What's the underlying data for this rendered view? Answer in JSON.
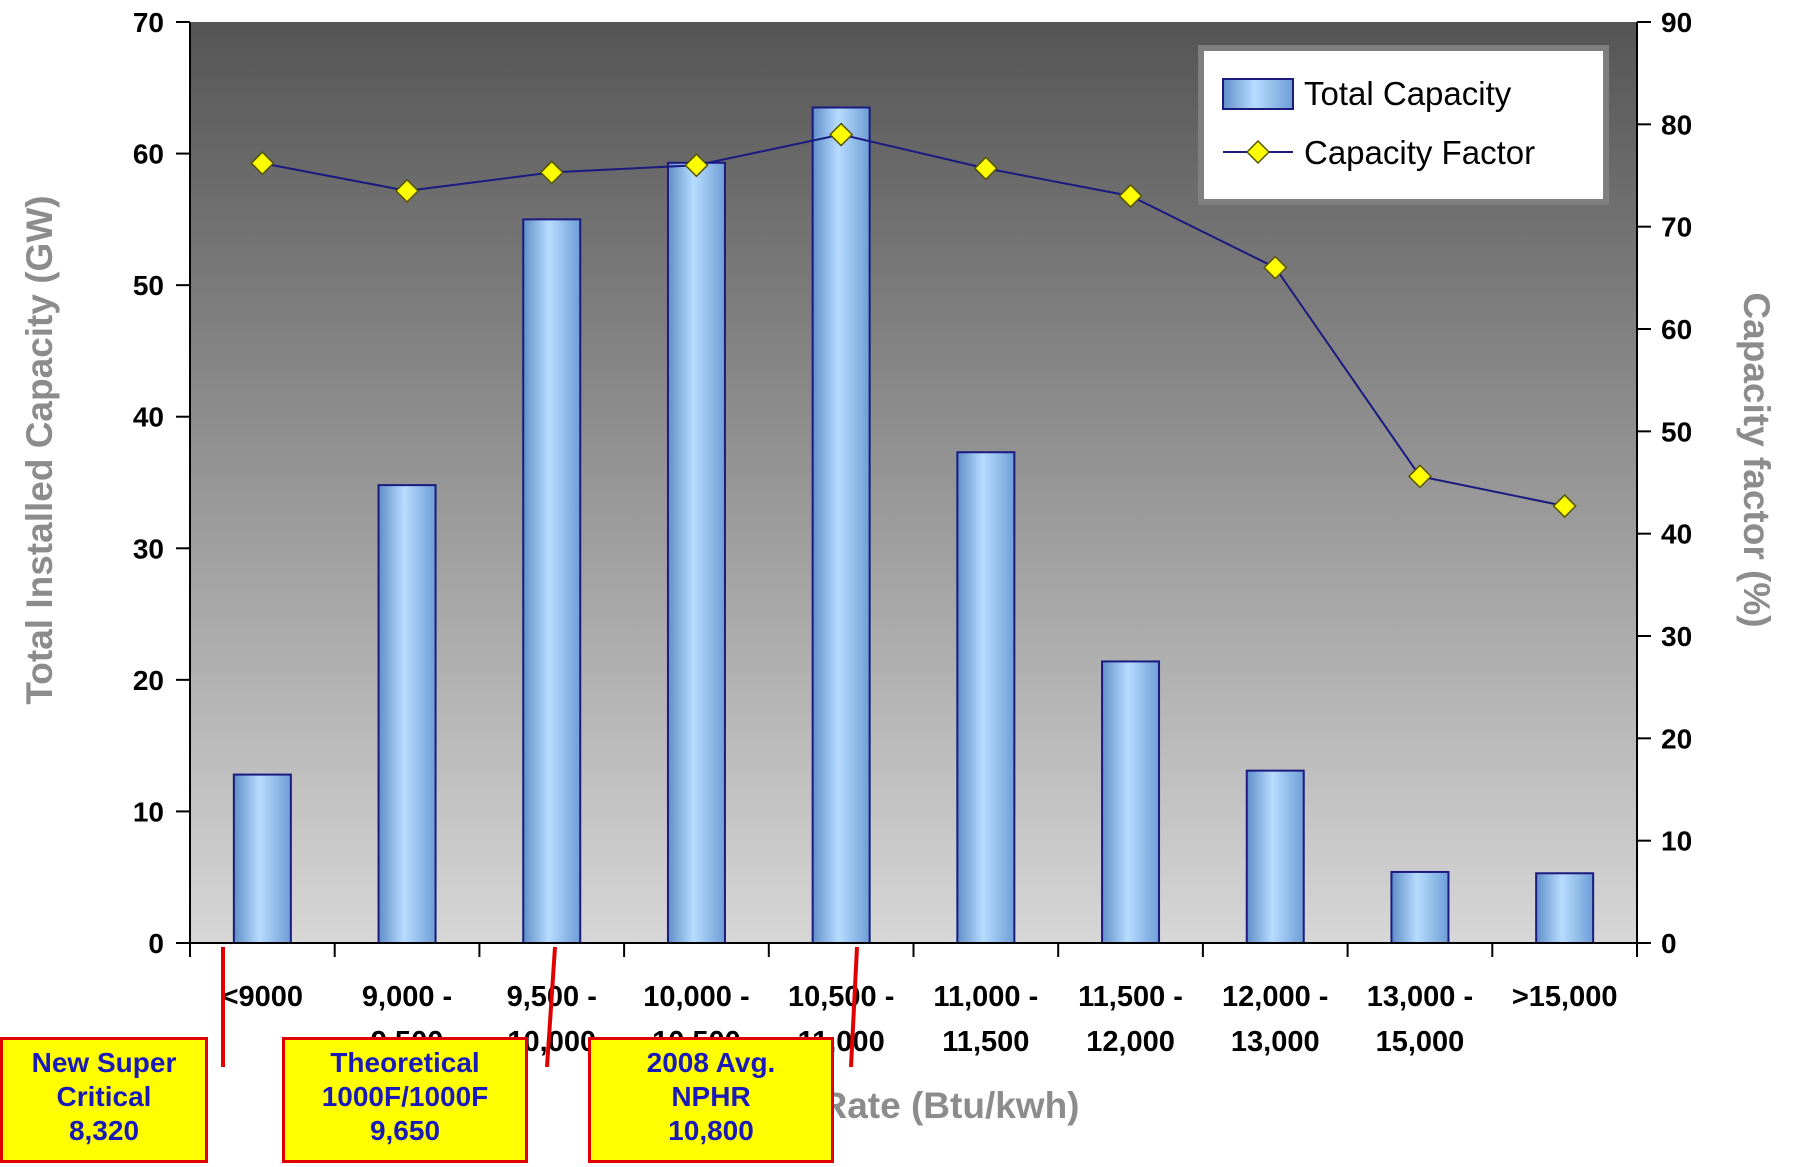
{
  "chart_data": {
    "type": "bar",
    "categories": [
      "<9000",
      "9,000 -\n9,500",
      "9,500 -\n10,000",
      "10,000 -\n10,500",
      "10,500 -\n11,000",
      "11,000 -\n11,500",
      "11,500 -\n12,000",
      "12,000 -\n13,000",
      "13,000 -\n15,000",
      ">15,000"
    ],
    "series": [
      {
        "name": "Total Capacity",
        "type": "bar",
        "axis": "left",
        "values": [
          12.8,
          34.8,
          55.0,
          59.3,
          63.5,
          37.3,
          21.4,
          13.1,
          5.4,
          5.3
        ]
      },
      {
        "name": "Capacity Factor",
        "type": "line",
        "axis": "right",
        "values": [
          76.2,
          73.5,
          75.3,
          76.0,
          79.0,
          75.7,
          73.0,
          66.0,
          45.6,
          42.7
        ]
      }
    ],
    "ylabel": "Total Installed Capacity (GW)",
    "y2label": "Capacity factor (%)",
    "xlabel": "Rate (Btu/kwh)",
    "ylim": [
      0,
      70
    ],
    "y2lim": [
      0,
      90
    ],
    "yticks": [
      0,
      10,
      20,
      30,
      40,
      50,
      60,
      70
    ],
    "y2ticks": [
      0,
      10,
      20,
      30,
      40,
      50,
      60,
      70,
      80,
      90
    ],
    "legend": "top-right",
    "grid": false,
    "annotations": [
      {
        "lines": [
          "New Super",
          "Critical",
          "8,320"
        ],
        "heat_rate": 8320
      },
      {
        "lines": [
          "Theoretical",
          "1000F/1000F",
          "9,650"
        ],
        "heat_rate": 9650
      },
      {
        "lines": [
          "2008 Avg.",
          "NPHR",
          "10,800"
        ],
        "heat_rate": 10800
      }
    ]
  },
  "colors": {
    "bar_fill": "#9cc8f0",
    "bar_edge": "#1a1a80",
    "line": "#1a1a80",
    "marker": "#ffff00",
    "plot_bg_top": "#555555",
    "plot_bg_bottom": "#d7d7d7",
    "marker_line_red": "#e00000",
    "note_fill": "#ffff00",
    "note_text": "#1a1ab8"
  }
}
